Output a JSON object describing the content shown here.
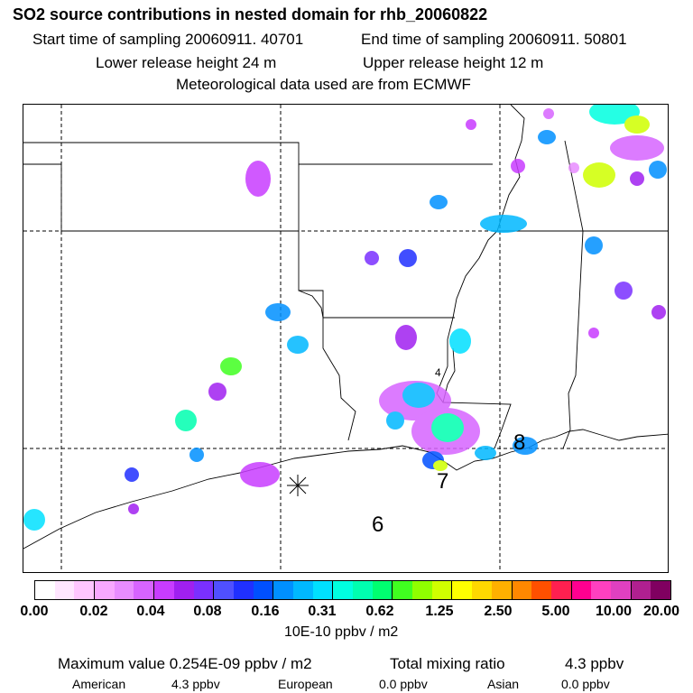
{
  "header": {
    "title": "SO2 source contributions in nested domain for rhb_20060822",
    "start_time": "Start time of sampling 20060911. 40701",
    "end_time": "End time of sampling 20060911. 50801",
    "lower_height": "Lower release height   24 m",
    "upper_height": "Upper release height   12 m",
    "met_data": "Meteorological data used are from ECMWF"
  },
  "map": {
    "labels": [
      "6",
      "7",
      "8",
      "4"
    ]
  },
  "colorbar": {
    "colors": [
      "#ffffff",
      "#ffe6ff",
      "#ffc6ff",
      "#f8a8ff",
      "#e88cff",
      "#d764ff",
      "#c83cff",
      "#a020f0",
      "#7a30ff",
      "#5050ff",
      "#2030ff",
      "#0050ff",
      "#0090ff",
      "#00b8ff",
      "#00e0ff",
      "#00ffe0",
      "#00ffb0",
      "#00ff70",
      "#40ff20",
      "#90ff00",
      "#d0ff00",
      "#ffff00",
      "#ffd800",
      "#ffb000",
      "#ff8800",
      "#ff5000",
      "#ff2050",
      "#ff0090",
      "#ff40c0",
      "#e040c0",
      "#b02090",
      "#800060"
    ],
    "tick_labels": [
      "0.00",
      "0.02",
      "0.04",
      "0.08",
      "0.16",
      "0.31",
      "0.62",
      "1.25",
      "2.50",
      "5.00",
      "10.00",
      "20.00"
    ],
    "unit": "10E-10 ppbv / m2"
  },
  "footer": {
    "max_value": "Maximum value  0.254E-09 ppbv / m2",
    "total_label": "Total mixing ratio",
    "total_value": "4.3 ppbv",
    "sources": [
      {
        "name": "American",
        "value": "4.3 ppbv"
      },
      {
        "name": "European",
        "value": "0.0 ppbv"
      },
      {
        "name": "Asian",
        "value": "0.0 ppbv"
      }
    ]
  }
}
